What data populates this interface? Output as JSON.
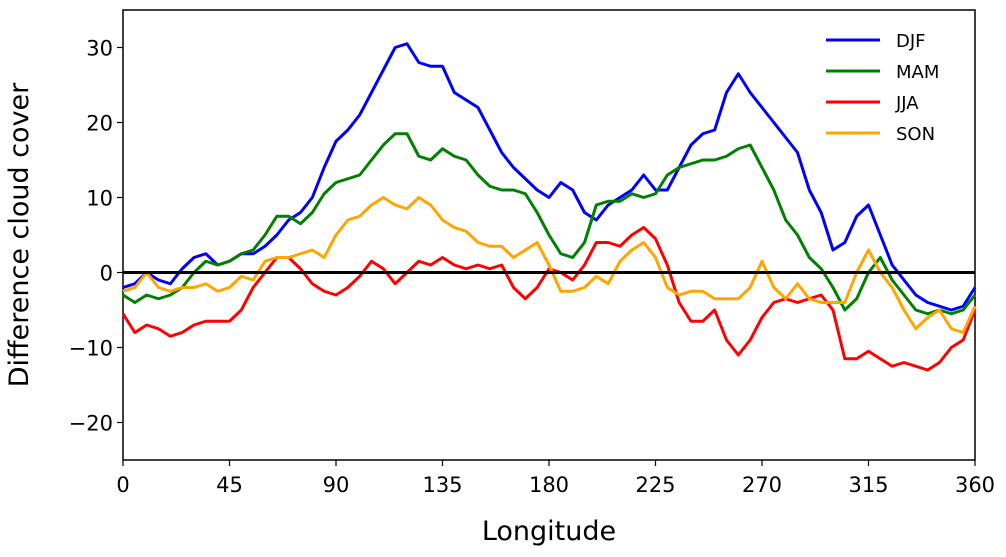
{
  "chart_data": {
    "type": "line",
    "x_label": "Longitude",
    "y_label": "Difference cloud cover",
    "xlim": [
      0,
      360
    ],
    "xticks": [
      0,
      45,
      90,
      135,
      180,
      225,
      270,
      315,
      360
    ],
    "ylim": [
      -25,
      35
    ],
    "yticks": [
      {
        "value": -20,
        "label": "−20"
      },
      {
        "value": -10,
        "label": "−10"
      },
      0,
      10,
      20,
      30
    ],
    "hline": 0,
    "legend": "upper right",
    "x": [
      0,
      5,
      10,
      15,
      20,
      25,
      30,
      35,
      40,
      45,
      50,
      55,
      60,
      65,
      70,
      75,
      80,
      85,
      90,
      95,
      100,
      105,
      110,
      115,
      120,
      125,
      130,
      135,
      140,
      145,
      150,
      155,
      160,
      165,
      170,
      175,
      180,
      185,
      190,
      195,
      200,
      205,
      210,
      215,
      220,
      225,
      230,
      235,
      240,
      245,
      250,
      255,
      260,
      265,
      270,
      275,
      280,
      285,
      290,
      295,
      300,
      305,
      310,
      315,
      320,
      325,
      330,
      335,
      340,
      345,
      350,
      355,
      360
    ],
    "series": [
      {
        "name": "DJF",
        "color": "#0000ff",
        "values": [
          -2,
          -1.5,
          0,
          -1,
          -1.5,
          0.5,
          2,
          2.5,
          1,
          1.5,
          2.5,
          2.5,
          3.5,
          5,
          7,
          8,
          10,
          14,
          17.5,
          19,
          21,
          24,
          27,
          30,
          30.5,
          28,
          27.5,
          27.5,
          24,
          23,
          22,
          19,
          16,
          14,
          12.5,
          11,
          10,
          12,
          11,
          8,
          7,
          9,
          10,
          11,
          13,
          11,
          11,
          14,
          17,
          18.5,
          19,
          24,
          26.5,
          24,
          22,
          20,
          18,
          16,
          11,
          8,
          3,
          4,
          7.5,
          9,
          5,
          1,
          -1,
          -3,
          -4,
          -4.5,
          -5,
          -4.5,
          -2
        ]
      },
      {
        "name": "MAM",
        "color": "#008000",
        "values": [
          -3,
          -4,
          -3,
          -3.5,
          -3,
          -2,
          0,
          1.5,
          1,
          1.5,
          2.5,
          3,
          5,
          7.5,
          7.5,
          6.5,
          8,
          10.5,
          12,
          12.5,
          13,
          15,
          17,
          18.5,
          18.5,
          15.5,
          15,
          16.5,
          15.5,
          15,
          13,
          11.5,
          11,
          11,
          10.5,
          8,
          5,
          2.5,
          2,
          4,
          9,
          9.5,
          9.5,
          10.5,
          10,
          10.5,
          13,
          14,
          14.5,
          15,
          15,
          15.5,
          16.5,
          17,
          14,
          11,
          7,
          5,
          2,
          0.5,
          -2,
          -5,
          -3.5,
          0,
          2,
          -1,
          -3,
          -5,
          -5.5,
          -5,
          -5.5,
          -5,
          -3
        ]
      },
      {
        "name": "JJA",
        "color": "#ff0000",
        "values": [
          -5.5,
          -8,
          -7,
          -7.5,
          -8.5,
          -8,
          -7,
          -6.5,
          -6.5,
          -6.5,
          -5,
          -2,
          0,
          2,
          2,
          0.5,
          -1.5,
          -2.5,
          -3,
          -2,
          -0.5,
          1.5,
          0.5,
          -1.5,
          0,
          1.5,
          1,
          2,
          1,
          0.5,
          1,
          0.5,
          1,
          -2,
          -3.5,
          -2,
          0.5,
          0,
          -1,
          1,
          4,
          4,
          3.5,
          5,
          6,
          4.5,
          1,
          -4,
          -6.5,
          -6.5,
          -5,
          -9,
          -11,
          -9,
          -6,
          -4,
          -3.5,
          -4,
          -3.5,
          -3,
          -5,
          -11.5,
          -11.5,
          -10.5,
          -11.5,
          -12.5,
          -12,
          -12.5,
          -13,
          -12,
          -10,
          -9,
          -5
        ]
      },
      {
        "name": "SON",
        "color": "#ffa500",
        "values": [
          -2.5,
          -2,
          0,
          -2,
          -2.5,
          -2,
          -2,
          -1.5,
          -2.5,
          -2,
          -0.5,
          -1,
          1.5,
          2,
          2,
          2.5,
          3,
          2,
          5,
          7,
          7.5,
          9,
          10,
          9,
          8.5,
          10,
          9,
          7,
          6,
          5.5,
          4,
          3.5,
          3.5,
          2,
          3,
          4,
          1,
          -2.5,
          -2.5,
          -2,
          -0.5,
          -1.5,
          1.5,
          3,
          4,
          2,
          -2,
          -3,
          -2.5,
          -2.5,
          -3.5,
          -3.5,
          -3.5,
          -2,
          1.5,
          -2,
          -3.5,
          -1.5,
          -3.5,
          -4,
          -4,
          -4,
          0,
          3,
          0,
          -2,
          -5,
          -7.5,
          -6,
          -5,
          -7.5,
          -8,
          -4.5
        ]
      }
    ]
  }
}
